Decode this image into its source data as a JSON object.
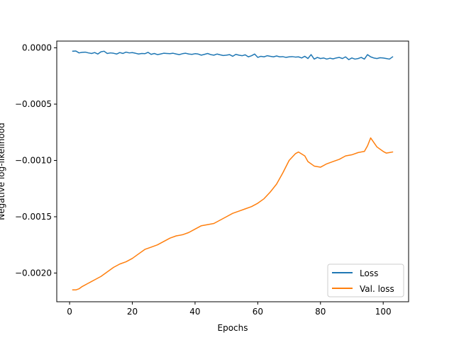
{
  "chart_data": {
    "type": "line",
    "title": "",
    "xlabel": "Epochs",
    "ylabel": "Negative log-likelihood",
    "xlim": [
      -4.1,
      108.1
    ],
    "ylim": [
      -0.002255,
      6e-05
    ],
    "xticks": [
      0,
      20,
      40,
      60,
      80,
      100
    ],
    "yticks": [
      0.0,
      -0.0005,
      -0.001,
      -0.0015,
      -0.002
    ],
    "xtick_labels": [
      "0",
      "20",
      "40",
      "60",
      "80",
      "100"
    ],
    "ytick_labels": [
      "0.0000",
      "−0.0005",
      "−0.0010",
      "−0.0015",
      "−0.0020"
    ],
    "grid": false,
    "legend_position": "lower-right",
    "colors": {
      "loss": "#1f77b4",
      "val_loss": "#ff7f0e"
    },
    "series": [
      {
        "name": "Loss",
        "color": "#1f77b4",
        "x": [
          1,
          2,
          3,
          4,
          5,
          6,
          7,
          8,
          9,
          10,
          11,
          12,
          13,
          14,
          15,
          16,
          17,
          18,
          19,
          20,
          21,
          22,
          23,
          24,
          25,
          26,
          27,
          28,
          29,
          30,
          31,
          32,
          33,
          34,
          35,
          36,
          37,
          38,
          39,
          40,
          41,
          42,
          43,
          44,
          45,
          46,
          47,
          48,
          49,
          50,
          51,
          52,
          53,
          54,
          55,
          56,
          57,
          58,
          59,
          60,
          61,
          62,
          63,
          64,
          65,
          66,
          67,
          68,
          69,
          70,
          71,
          72,
          73,
          74,
          75,
          76,
          77,
          78,
          79,
          80,
          81,
          82,
          83,
          84,
          85,
          86,
          87,
          88,
          89,
          90,
          91,
          92,
          93,
          94,
          95,
          96,
          97,
          98,
          99,
          100,
          101,
          102,
          103
        ],
        "y": [
          -3e-05,
          -2.8e-05,
          -4.5e-05,
          -4e-05,
          -3.8e-05,
          -4.5e-05,
          -5e-05,
          -4.2e-05,
          -5.5e-05,
          -3.5e-05,
          -3e-05,
          -5e-05,
          -4.5e-05,
          -4.8e-05,
          -5.5e-05,
          -4.2e-05,
          -5e-05,
          -3.8e-05,
          -4.5e-05,
          -4.2e-05,
          -4.8e-05,
          -5.5e-05,
          -5e-05,
          -5.2e-05,
          -4e-05,
          -5.8e-05,
          -5e-05,
          -6e-05,
          -5.5e-05,
          -4.8e-05,
          -5e-05,
          -5.2e-05,
          -4.8e-05,
          -5.5e-05,
          -6e-05,
          -5.2e-05,
          -4.8e-05,
          -5.5e-05,
          -5.8e-05,
          -5.2e-05,
          -5.5e-05,
          -6.5e-05,
          -5.8e-05,
          -5e-05,
          -6e-05,
          -6.5e-05,
          -5.5e-05,
          -6.2e-05,
          -6.8e-05,
          -6.5e-05,
          -6e-05,
          -7.5e-05,
          -5.8e-05,
          -6.5e-05,
          -7e-05,
          -6.2e-05,
          -8e-05,
          -7e-05,
          -5.5e-05,
          -8.5e-05,
          -7.5e-05,
          -8e-05,
          -7e-05,
          -7.5e-05,
          -8e-05,
          -7.2e-05,
          -8e-05,
          -7.8e-05,
          -8.5e-05,
          -8e-05,
          -7.8e-05,
          -8.2e-05,
          -8e-05,
          -9e-05,
          -7.5e-05,
          -9.5e-05,
          -6e-05,
          -0.0001,
          -8.5e-05,
          -9.5e-05,
          -9e-05,
          -0.0001,
          -9.2e-05,
          -9.8e-05,
          -9e-05,
          -8.5e-05,
          -9.5e-05,
          -8e-05,
          -0.000105,
          -9e-05,
          -0.0001,
          -9.5e-05,
          -8.5e-05,
          -0.0001,
          -6e-05,
          -8e-05,
          -9e-05,
          -9.5e-05,
          -8.8e-05,
          -9e-05,
          -9.5e-05,
          -0.0001,
          -8e-05
        ]
      },
      {
        "name": "Val. loss",
        "color": "#ff7f0e",
        "x": [
          1,
          2,
          3,
          4,
          6,
          8,
          10,
          12,
          14,
          16,
          18,
          20,
          22,
          24,
          26,
          28,
          30,
          32,
          34,
          36,
          38,
          40,
          42,
          44,
          46,
          48,
          50,
          52,
          54,
          56,
          58,
          60,
          62,
          64,
          66,
          68,
          70,
          72,
          73,
          75,
          76,
          78,
          80,
          82,
          84,
          86,
          88,
          90,
          92,
          94,
          95,
          96,
          98,
          100,
          101,
          102,
          103
        ],
        "y": [
          -0.00215,
          -0.00215,
          -0.00214,
          -0.00212,
          -0.00209,
          -0.00206,
          -0.00203,
          -0.00199,
          -0.00195,
          -0.00192,
          -0.0019,
          -0.00187,
          -0.00183,
          -0.00179,
          -0.00177,
          -0.00175,
          -0.00172,
          -0.00169,
          -0.00167,
          -0.00166,
          -0.00164,
          -0.00161,
          -0.00158,
          -0.00157,
          -0.00156,
          -0.00153,
          -0.0015,
          -0.00147,
          -0.00145,
          -0.00143,
          -0.00141,
          -0.00138,
          -0.00134,
          -0.00128,
          -0.00121,
          -0.00111,
          -0.001,
          -0.00094,
          -0.000925,
          -0.00096,
          -0.00101,
          -0.00105,
          -0.00106,
          -0.00103,
          -0.00101,
          -0.00099,
          -0.00096,
          -0.00095,
          -0.00093,
          -0.00092,
          -0.00087,
          -0.0008,
          -0.00088,
          -0.00092,
          -0.000935,
          -0.00093,
          -0.000925
        ]
      }
    ]
  }
}
